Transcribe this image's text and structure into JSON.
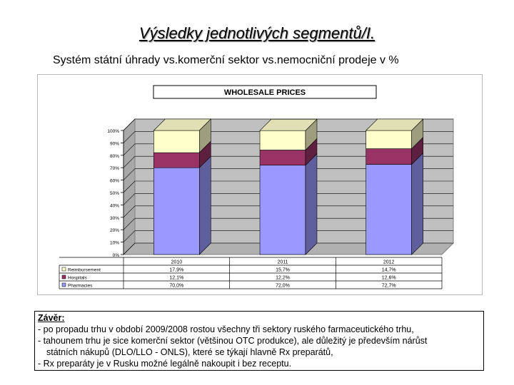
{
  "slide": {
    "title": "Výsledky jednotlivých segmentů/I.",
    "subtitle": "Systém státní úhrady vs.komerční sektor vs.nemocniční prodeje v %"
  },
  "chart_data": {
    "type": "bar",
    "stacked": true,
    "percent_stacked": true,
    "three_d": true,
    "title": "WHOLESALE PRICES",
    "categories": [
      "2010",
      "2011",
      "2012"
    ],
    "series": [
      {
        "name": "Pharmacies",
        "color": "#9999ff",
        "values": [
          70.0,
          72.0,
          72.7
        ],
        "labels": [
          "70,0%",
          "72,0%",
          "72,7%"
        ]
      },
      {
        "name": "Hospitals",
        "color": "#993366",
        "values": [
          12.1,
          12.2,
          12.6
        ],
        "labels": [
          "12,1%",
          "12,2%",
          "12,6%"
        ]
      },
      {
        "name": "Reimbursement",
        "color": "#ffffcc",
        "values": [
          17.9,
          15.7,
          14.7
        ],
        "labels": [
          "17,9%",
          "15,7%",
          "14,7%"
        ]
      }
    ],
    "ylim": [
      0,
      100
    ],
    "yticks": [
      "0%",
      "10%",
      "20%",
      "30%",
      "40%",
      "50%",
      "60%",
      "70%",
      "80%",
      "90%",
      "100%"
    ],
    "grid": true,
    "legend": "data-table below plot",
    "wall_color": "#c0c0c0"
  },
  "conclusion": {
    "heading": "Závěr:",
    "line1": "- po propadu trhu v období 2009/2008 rostou všechny tři sektory ruského farmaceutického trhu,",
    "line2": "- tahounem trhu je sice komerční sektor (většinou OTC produkce), ale důležitý je především nárůst",
    "line3": "státních nákupů (DLO/LLO - ONLS), které se týkají hlavně Rx preparátů,",
    "line4": "- Rx preparáty je v Rusku možné legálně nakoupit i bez receptu."
  }
}
